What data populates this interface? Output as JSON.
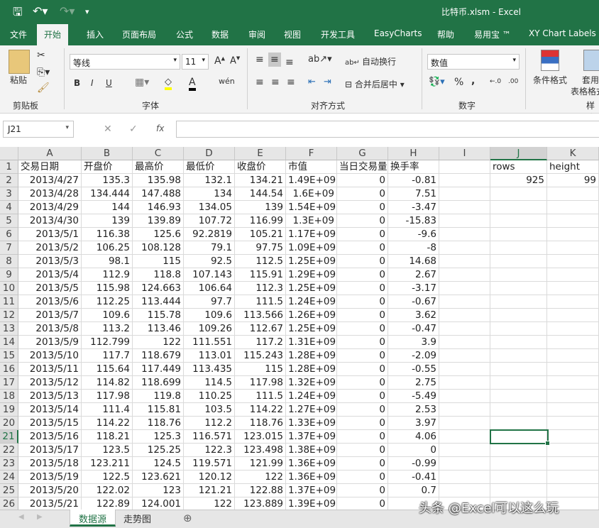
{
  "window": {
    "title": "比特币.xlsm  -  Excel"
  },
  "quick_access": {
    "save": "save-icon",
    "undo": "undo-icon",
    "redo": "redo-icon",
    "customize": "▾"
  },
  "ribbon_tabs": [
    "文件",
    "开始",
    "插入",
    "页面布局",
    "公式",
    "数据",
    "审阅",
    "视图",
    "开发工具",
    "EasyCharts",
    "帮助",
    "易用宝 ™",
    "XY Chart Labels"
  ],
  "active_tab": "开始",
  "ribbon": {
    "clipboard": {
      "paste": "粘贴",
      "group": "剪贴板"
    },
    "font": {
      "name": "等线",
      "size": "11",
      "bold": "B",
      "italic": "I",
      "underline": "U",
      "group": "字体"
    },
    "alignment": {
      "wrap": "自动换行",
      "merge": "合并后居中",
      "group": "对齐方式"
    },
    "number": {
      "format": "数值",
      "percent": "%",
      "comma": ",",
      "group": "数字"
    },
    "styles": {
      "conditional": "条件格式",
      "table1": "套用",
      "table2": "表格格式",
      "group": "样式"
    }
  },
  "formula_bar": {
    "name_box": "J21",
    "fx": "fx",
    "value": ""
  },
  "columns": [
    "A",
    "B",
    "C",
    "D",
    "E",
    "F",
    "G",
    "H",
    "I",
    "J",
    "K"
  ],
  "selected_cell": "J21",
  "rows": [
    [
      "交易日期",
      "开盘价",
      "最高价",
      "最低价",
      "收盘价",
      "市值",
      "当日交易量",
      "换手率",
      "",
      "rows",
      "height"
    ],
    [
      "2013/4/27",
      "135.3",
      "135.98",
      "132.1",
      "134.21",
      "1.49E+09",
      "0",
      "-0.81",
      "",
      "925",
      "99"
    ],
    [
      "2013/4/28",
      "134.444",
      "147.488",
      "134",
      "144.54",
      "1.6E+09",
      "0",
      "7.51",
      "",
      "",
      ""
    ],
    [
      "2013/4/29",
      "144",
      "146.93",
      "134.05",
      "139",
      "1.54E+09",
      "0",
      "-3.47",
      "",
      "",
      ""
    ],
    [
      "2013/4/30",
      "139",
      "139.89",
      "107.72",
      "116.99",
      "1.3E+09",
      "0",
      "-15.83",
      "",
      "",
      ""
    ],
    [
      "2013/5/1",
      "116.38",
      "125.6",
      "92.2819",
      "105.21",
      "1.17E+09",
      "0",
      "-9.6",
      "",
      "",
      ""
    ],
    [
      "2013/5/2",
      "106.25",
      "108.128",
      "79.1",
      "97.75",
      "1.09E+09",
      "0",
      "-8",
      "",
      "",
      ""
    ],
    [
      "2013/5/3",
      "98.1",
      "115",
      "92.5",
      "112.5",
      "1.25E+09",
      "0",
      "14.68",
      "",
      "",
      ""
    ],
    [
      "2013/5/4",
      "112.9",
      "118.8",
      "107.143",
      "115.91",
      "1.29E+09",
      "0",
      "2.67",
      "",
      "",
      ""
    ],
    [
      "2013/5/5",
      "115.98",
      "124.663",
      "106.64",
      "112.3",
      "1.25E+09",
      "0",
      "-3.17",
      "",
      "",
      ""
    ],
    [
      "2013/5/6",
      "112.25",
      "113.444",
      "97.7",
      "111.5",
      "1.24E+09",
      "0",
      "-0.67",
      "",
      "",
      ""
    ],
    [
      "2013/5/7",
      "109.6",
      "115.78",
      "109.6",
      "113.566",
      "1.26E+09",
      "0",
      "3.62",
      "",
      "",
      ""
    ],
    [
      "2013/5/8",
      "113.2",
      "113.46",
      "109.26",
      "112.67",
      "1.25E+09",
      "0",
      "-0.47",
      "",
      "",
      ""
    ],
    [
      "2013/5/9",
      "112.799",
      "122",
      "111.551",
      "117.2",
      "1.31E+09",
      "0",
      "3.9",
      "",
      "",
      ""
    ],
    [
      "2013/5/10",
      "117.7",
      "118.679",
      "113.01",
      "115.243",
      "1.28E+09",
      "0",
      "-2.09",
      "",
      "",
      ""
    ],
    [
      "2013/5/11",
      "115.64",
      "117.449",
      "113.435",
      "115",
      "1.28E+09",
      "0",
      "-0.55",
      "",
      "",
      ""
    ],
    [
      "2013/5/12",
      "114.82",
      "118.699",
      "114.5",
      "117.98",
      "1.32E+09",
      "0",
      "2.75",
      "",
      "",
      ""
    ],
    [
      "2013/5/13",
      "117.98",
      "119.8",
      "110.25",
      "111.5",
      "1.24E+09",
      "0",
      "-5.49",
      "",
      "",
      ""
    ],
    [
      "2013/5/14",
      "111.4",
      "115.81",
      "103.5",
      "114.22",
      "1.27E+09",
      "0",
      "2.53",
      "",
      "",
      ""
    ],
    [
      "2013/5/15",
      "114.22",
      "118.76",
      "112.2",
      "118.76",
      "1.33E+09",
      "0",
      "3.97",
      "",
      "",
      ""
    ],
    [
      "2013/5/16",
      "118.21",
      "125.3",
      "116.571",
      "123.015",
      "1.37E+09",
      "0",
      "4.06",
      "",
      "",
      ""
    ],
    [
      "2013/5/17",
      "123.5",
      "125.25",
      "122.3",
      "123.498",
      "1.38E+09",
      "0",
      "0",
      "",
      "",
      ""
    ],
    [
      "2013/5/18",
      "123.211",
      "124.5",
      "119.571",
      "121.99",
      "1.36E+09",
      "0",
      "-0.99",
      "",
      "",
      ""
    ],
    [
      "2013/5/19",
      "122.5",
      "123.621",
      "120.12",
      "122",
      "1.36E+09",
      "0",
      "-0.41",
      "",
      "",
      ""
    ],
    [
      "2013/5/20",
      "122.02",
      "123",
      "121.21",
      "122.88",
      "1.37E+09",
      "0",
      "0.7",
      "",
      "",
      ""
    ],
    [
      "2013/5/21",
      "122.89",
      "124.001",
      "122",
      "123.889",
      "1.39E+09",
      "0",
      "",
      "",
      "",
      ""
    ]
  ],
  "sheets": [
    "数据源",
    "走势图"
  ],
  "active_sheet": "数据源",
  "watermark": "头条 @Excel可以这么玩",
  "colors": {
    "accent": "#217346"
  }
}
